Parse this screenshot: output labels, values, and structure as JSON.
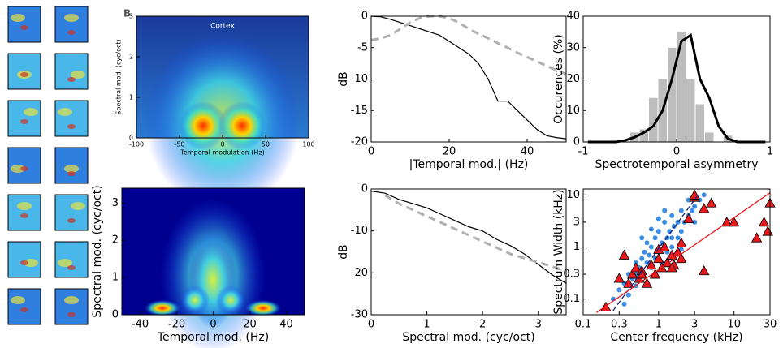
{
  "chart_data": [
    {
      "type": "heatmap",
      "panel_label": "B",
      "annotation": "Cortex",
      "xlabel": "Temporal modulation (Hz)",
      "ylabel": "Spectral mod. (cyc/oct)",
      "xlim": [
        -100,
        100
      ],
      "xticks": [
        -100,
        -50,
        0,
        50,
        100
      ],
      "ylim": [
        0,
        3
      ],
      "yticks": [
        0,
        1,
        2,
        3
      ]
    },
    {
      "type": "heatmap",
      "xlabel": "Temporal mod. (Hz)",
      "ylabel": "Spectral mod. (cyc/oct)",
      "xlim": [
        -50,
        50
      ],
      "xticks": [
        -40,
        -20,
        0,
        20,
        40
      ],
      "ylim": [
        0,
        3.4
      ],
      "yticks": [
        0,
        1,
        2,
        3
      ]
    },
    {
      "type": "line",
      "xlabel": "|Temporal mod.| (Hz)",
      "ylabel": "dB",
      "xlim": [
        0,
        50
      ],
      "xticks": [
        0,
        20,
        40
      ],
      "ylim": [
        -20,
        0
      ],
      "yticks": [
        -20,
        -15,
        -10,
        -5,
        0
      ],
      "x": [
        0,
        2.5,
        5,
        7.5,
        10,
        12.5,
        15,
        17.5,
        20,
        22.5,
        25,
        27.5,
        30,
        32.5,
        35,
        37.5,
        40,
        42.5,
        45,
        47.5,
        50
      ],
      "series": [
        {
          "color": "#000000",
          "dashed": false,
          "values": [
            0,
            -0.1,
            -0.5,
            -1,
            -1.5,
            -2,
            -2.5,
            -3,
            -4,
            -5,
            -6,
            -7.5,
            -10,
            -13.5,
            -13.5,
            -15,
            -16.5,
            -18,
            -19,
            -19.3,
            -19.5
          ]
        },
        {
          "color": "#b0b0b0",
          "dashed": true,
          "values": [
            -3.8,
            -3.5,
            -3,
            -2,
            -1,
            -0.3,
            0,
            0,
            -0.3,
            -1,
            -2,
            -2.8,
            -3.5,
            -4.3,
            -5,
            -5.8,
            -6.5,
            -7.2,
            -7.9,
            -8.6,
            -9.2
          ]
        }
      ]
    },
    {
      "type": "line",
      "xlabel": "Spectral mod. (cyc/oct)",
      "ylabel": "dB",
      "xlim": [
        0,
        3.5
      ],
      "xticks": [
        0,
        1,
        2,
        3
      ],
      "ylim": [
        -30,
        0
      ],
      "yticks": [
        -30,
        -20,
        -10,
        0
      ],
      "x": [
        0,
        0.25,
        0.5,
        0.75,
        1,
        1.25,
        1.5,
        1.75,
        2,
        2.25,
        2.5,
        2.75,
        3,
        3.25,
        3.5
      ],
      "series": [
        {
          "color": "#000000",
          "dashed": false,
          "values": [
            -0.5,
            -1,
            -2.5,
            -3.5,
            -4.5,
            -6,
            -7.5,
            -9,
            -10,
            -12,
            -13.5,
            -15.5,
            -18,
            -20.5,
            -22.5
          ]
        },
        {
          "color": "#b0b0b0",
          "dashed": true,
          "values": [
            null,
            -1.5,
            -3.5,
            -5,
            -6.5,
            -8,
            -9.5,
            -11,
            -12.5,
            -14,
            -15.5,
            -16.5,
            -17.5,
            -18.5,
            -19.5
          ]
        }
      ]
    },
    {
      "type": "histogram",
      "xlabel": "Spectrotemporal asymmetry",
      "ylabel": "Occurences (%)",
      "xlim": [
        -1,
        1
      ],
      "xticks": [
        -1,
        0,
        1
      ],
      "ylim": [
        0,
        40
      ],
      "yticks": [
        0,
        10,
        20,
        30,
        40
      ],
      "bins": [
        -1,
        -0.9,
        -0.8,
        -0.7,
        -0.6,
        -0.5,
        -0.4,
        -0.3,
        -0.2,
        -0.1,
        0,
        0.1,
        0.2,
        0.3,
        0.4,
        0.5,
        0.6,
        0.7,
        0.8,
        0.9,
        1
      ],
      "values": [
        0,
        0,
        0,
        0,
        0,
        3,
        4,
        14,
        20,
        30,
        35,
        20,
        12,
        3,
        0,
        2,
        0,
        0,
        0,
        0
      ],
      "color": "#bdbdbd",
      "x": [
        -0.95,
        -0.85,
        -0.75,
        -0.65,
        -0.55,
        -0.45,
        -0.35,
        -0.25,
        -0.15,
        -0.05,
        0.05,
        0.15,
        0.25,
        0.35,
        0.45,
        0.55,
        0.65,
        0.75,
        0.85,
        0.95
      ],
      "series": [
        {
          "color": "#000000",
          "values": [
            0,
            0,
            0,
            0,
            0.5,
            1.5,
            3,
            5,
            10,
            20,
            32,
            34,
            20,
            14,
            5,
            1,
            0,
            0,
            0,
            0
          ]
        }
      ]
    },
    {
      "type": "scatter",
      "xlabel": "Center frequency (kHz)",
      "ylabel": "Spectrum Width (kHz)",
      "xscale": "log",
      "yscale": "log",
      "xlim": [
        0.1,
        30
      ],
      "xticks": [
        0.1,
        0.3,
        1,
        3,
        10,
        30
      ],
      "ylim": [
        0.05,
        13
      ],
      "yticks": [
        0.1,
        0.3,
        1,
        3,
        10
      ],
      "series": [
        {
          "marker": "circle",
          "color": "#3a8ee6",
          "x": [
            0.25,
            0.3,
            0.35,
            0.4,
            0.4,
            0.45,
            0.5,
            0.5,
            0.55,
            0.6,
            0.6,
            0.65,
            0.7,
            0.7,
            0.75,
            0.8,
            0.8,
            0.9,
            0.9,
            1,
            1,
            1.1,
            1.1,
            1.2,
            1.3,
            1.3,
            1.4,
            1.5,
            1.5,
            1.6,
            1.8,
            1.8,
            2,
            2,
            2.2,
            2.5,
            2.5,
            2.8,
            3,
            3,
            3.5,
            4,
            0.35,
            0.5,
            0.6,
            0.8,
            1,
            1.2,
            1.5,
            2
          ],
          "values": [
            0.1,
            0.15,
            0.2,
            0.12,
            0.3,
            0.25,
            0.3,
            0.5,
            0.4,
            0.6,
            0.3,
            0.8,
            0.5,
            1.2,
            0.7,
            1,
            0.4,
            1.5,
            0.6,
            0.8,
            2,
            1.2,
            0.5,
            3,
            1.5,
            0.8,
            2,
            1,
            4,
            2.5,
            3,
            1.5,
            5,
            2,
            3,
            4,
            8,
            5,
            6,
            3,
            8,
            10,
            0.08,
            0.18,
            1.5,
            2.2,
            3.5,
            5,
            1.5,
            0.9
          ]
        },
        {
          "marker": "triangle",
          "color": "#e8191c",
          "x": [
            0.2,
            0.3,
            0.35,
            0.4,
            0.45,
            0.5,
            0.55,
            0.6,
            0.7,
            0.8,
            0.9,
            1,
            1,
            1.1,
            1.2,
            1.3,
            1.5,
            1.6,
            1.8,
            2,
            2,
            2.5,
            3,
            3,
            4,
            4,
            5,
            8,
            10,
            20,
            25,
            28,
            30,
            0.6,
            1.5
          ],
          "values": [
            0.07,
            0.25,
            0.7,
            0.2,
            0.3,
            0.4,
            0.25,
            0.35,
            0.2,
            0.45,
            0.3,
            0.6,
            0.9,
            0.4,
            1,
            0.5,
            0.7,
            0.45,
            0.8,
            1.2,
            0.6,
            3.5,
            9,
            10,
            0.35,
            5.5,
            7,
            3,
            3,
            1.5,
            3,
            2,
            7,
            0.3,
            0.4
          ]
        },
        {
          "marker": "none",
          "color": "#1a237e",
          "dashed": true,
          "x": [
            0.25,
            3.5
          ],
          "values": [
            0.06,
            11
          ]
        },
        {
          "marker": "none",
          "color": "#e8191c",
          "dashed": false,
          "x": [
            0.15,
            30
          ],
          "values": [
            0.055,
            11
          ]
        }
      ]
    }
  ]
}
